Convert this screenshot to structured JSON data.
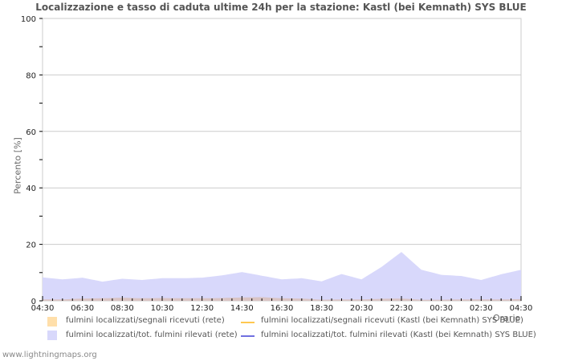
{
  "title": "Localizzazione e tasso di caduta ultime 24h per la stazione: Kastl (bei Kemnath) SYS BLUE",
  "ylabel": "Percento   [%]",
  "xunit": "Orario",
  "footer": "www.lightningmaps.org",
  "colors": {
    "area_rate_network": "#ffdfaa",
    "area_total_network": "#d8d8fb",
    "line_rate_station": "#ffc850",
    "line_total_station": "#7070e0",
    "grid": "#cccccc",
    "title": "#555555"
  },
  "legend": [
    {
      "label": "fulmini localizzati/segnali ricevuti (rete)",
      "kind": "area",
      "color": "#ffdfaa"
    },
    {
      "label": "fulmini localizzati/segnali ricevuti (Kastl (bei Kemnath) SYS BLUE)",
      "kind": "line",
      "color": "#ffc850"
    },
    {
      "label": "fulmini localizzati/tot. fulmini rilevati (rete)",
      "kind": "area",
      "color": "#d8d8fb"
    },
    {
      "label": "fulmini localizzati/tot. fulmini rilevati (Kastl (bei Kemnath) SYS BLUE)",
      "kind": "line",
      "color": "#7070e0"
    }
  ],
  "chart_data": {
    "type": "area",
    "title": "Localizzazione e tasso di caduta ultime 24h per la stazione: Kastl (bei Kemnath) SYS BLUE",
    "xlabel": "Orario",
    "ylabel": "Percento [%]",
    "ylim": [
      0,
      100
    ],
    "yticks": [
      0,
      20,
      40,
      60,
      80,
      100
    ],
    "xticks": [
      "04:30",
      "06:30",
      "08:30",
      "10:30",
      "12:30",
      "14:30",
      "16:30",
      "18:30",
      "20:30",
      "22:30",
      "00:30",
      "02:30",
      "04:30"
    ],
    "grid": true,
    "legend_position": "bottom",
    "x": [
      "04:30",
      "05:30",
      "06:30",
      "07:30",
      "08:30",
      "09:30",
      "10:30",
      "11:30",
      "12:30",
      "13:30",
      "14:30",
      "15:30",
      "16:30",
      "17:30",
      "18:30",
      "19:30",
      "20:30",
      "21:30",
      "22:30",
      "23:30",
      "00:30",
      "01:30",
      "02:30",
      "03:30",
      "04:30"
    ],
    "series": [
      {
        "name": "fulmini localizzati/tot. fulmini rilevati (rete)",
        "values": [
          8.3,
          7.6,
          8.2,
          6.8,
          7.8,
          7.4,
          8.0,
          8.0,
          8.2,
          9.0,
          10.2,
          8.9,
          7.6,
          8.0,
          6.9,
          9.5,
          7.6,
          12.0,
          17.3,
          11.0,
          9.2,
          8.8,
          7.4,
          9.4,
          11.0
        ]
      },
      {
        "name": "fulmini localizzati/segnali ricevuti (rete)",
        "values": [
          0.5,
          0.5,
          0.8,
          0.9,
          1.1,
          0.9,
          1.0,
          0.9,
          0.9,
          1.0,
          1.2,
          1.3,
          0.9,
          0.8,
          0.4,
          0.5,
          0.5,
          0.7,
          0.8,
          0.4,
          0.4,
          0.5,
          0.5,
          0.5,
          0.6
        ]
      },
      {
        "name": "fulmini localizzati/segnali ricevuti (Kastl (bei Kemnath) SYS BLUE)",
        "values": []
      },
      {
        "name": "fulmini localizzati/tot. fulmini rilevati (Kastl (bei Kemnath) SYS BLUE)",
        "values": []
      }
    ]
  }
}
